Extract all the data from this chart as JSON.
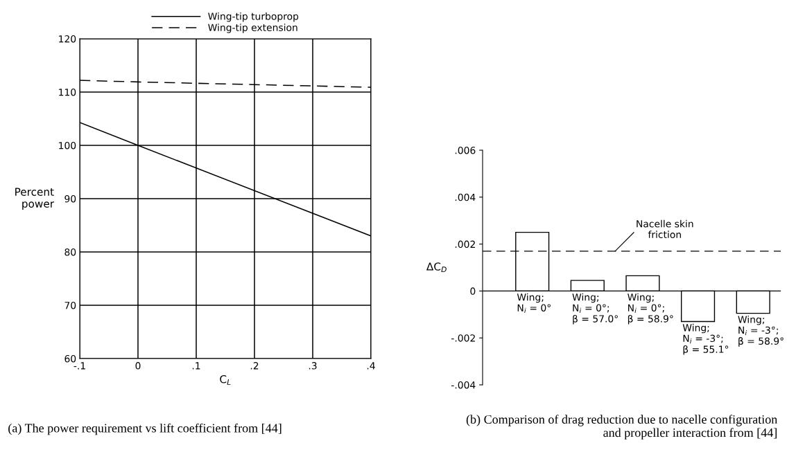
{
  "chart_data": [
    {
      "type": "line",
      "x": [
        -0.1,
        0,
        0.4
      ],
      "xlabel": "C$_{L}$",
      "ylabel": "Percent\npower",
      "series": [
        {
          "name": "Wing-tip turboprop",
          "color": "#000000",
          "line_style": "solid",
          "values": [
            104.3,
            100,
            83
          ]
        },
        {
          "name": "Wing-tip extension",
          "color": "#000000",
          "line_style": "dashed",
          "values": [
            112.2,
            111.9,
            110.9
          ]
        }
      ],
      "xlim": [
        -0.1,
        0.4
      ],
      "xticks": [
        {
          "value": -0.1,
          "label": "-.1"
        },
        0,
        {
          "value": 0.1,
          "label": ".1"
        },
        {
          "value": 0.2,
          "label": ".2"
        },
        {
          "value": 0.3,
          "label": ".3"
        },
        {
          "value": 0.4,
          "label": ".4"
        }
      ],
      "ylim": [
        60,
        120
      ],
      "yticks": [
        60,
        70,
        80,
        90,
        100,
        110,
        120
      ],
      "grid": true,
      "legend": "top",
      "marker": "none",
      "annotations": [
        "(a) The power requirement vs lift coefficient from [44]"
      ]
    },
    {
      "type": "bar",
      "ylabel": "ΔC$_{D}$",
      "categories": [
        "Wing;\nN$_{i}$ = 0°",
        "Wing;\nN$_{i}$ = 0°;\nβ = 57.0°",
        "Wing;\nN$_{i}$ = 0°;\nβ = 58.9°",
        "Wing;\nN$_{i}$ = -3°;\nβ = 55.1°",
        "Wing;\nN$_{i}$ = -3°;\nβ = 58.9°"
      ],
      "values": [
        0.0025,
        0.00045,
        0.00065,
        -0.0013,
        -0.00095
      ],
      "color": "#ffffff",
      "ylim": [
        -0.004,
        0.006
      ],
      "yticks": [
        {
          "value": -0.004,
          "label": "-.004"
        },
        {
          "value": -0.002,
          "label": "-.002"
        },
        0,
        {
          "value": 0.002,
          "label": ".002"
        },
        {
          "value": 0.004,
          "label": ".004"
        },
        {
          "value": 0.006,
          "label": ".006"
        }
      ],
      "grid": false,
      "ref_lines": [
        {
          "axis": "y",
          "value": 0.0017,
          "label": "Nacelle skin\nfriction",
          "line_style": "dashed",
          "color": "#000000"
        }
      ],
      "annotations": [
        "(b) Comparison of drag reduction due to nacelle configuration and propeller interaction from [44]"
      ]
    }
  ]
}
